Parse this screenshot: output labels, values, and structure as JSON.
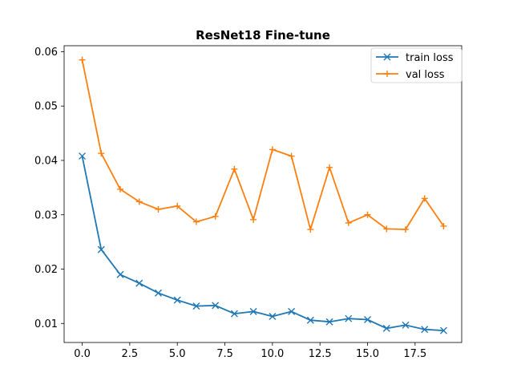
{
  "chart_data": {
    "type": "line",
    "title": "ResNet18 Fine-tune",
    "xlabel": "",
    "ylabel": "",
    "x": [
      0,
      1,
      2,
      3,
      4,
      5,
      6,
      7,
      8,
      9,
      10,
      11,
      12,
      13,
      14,
      15,
      16,
      17,
      18,
      19
    ],
    "xlim": [
      -0.95,
      19.95
    ],
    "ylim": [
      0.0065,
      0.0611
    ],
    "xticks": [
      0,
      2.5,
      5,
      7.5,
      10,
      12.5,
      15,
      17.5
    ],
    "xtick_labels": [
      "0.0",
      "2.5",
      "5.0",
      "7.5",
      "10.0",
      "12.5",
      "15.0",
      "17.5"
    ],
    "yticks": [
      0.01,
      0.02,
      0.03,
      0.04,
      0.05,
      0.06
    ],
    "ytick_labels": [
      "0.01",
      "0.02",
      "0.03",
      "0.04",
      "0.05",
      "0.06"
    ],
    "grid": false,
    "legend_position": "top-right",
    "series": [
      {
        "name": "train loss",
        "color": "#1f77b4",
        "marker": "x",
        "values": [
          0.0408,
          0.0236,
          0.019,
          0.0174,
          0.0156,
          0.0143,
          0.0132,
          0.0133,
          0.0118,
          0.0122,
          0.0113,
          0.0122,
          0.0106,
          0.0103,
          0.0109,
          0.0107,
          0.0091,
          0.0097,
          0.0089,
          0.0087
        ]
      },
      {
        "name": "val loss",
        "color": "#ff7f0e",
        "marker": "+",
        "values": [
          0.0585,
          0.0413,
          0.0347,
          0.0324,
          0.031,
          0.0316,
          0.0287,
          0.0297,
          0.0384,
          0.0291,
          0.042,
          0.0408,
          0.0273,
          0.0387,
          0.0285,
          0.03,
          0.0274,
          0.0273,
          0.033,
          0.0279
        ]
      }
    ]
  }
}
